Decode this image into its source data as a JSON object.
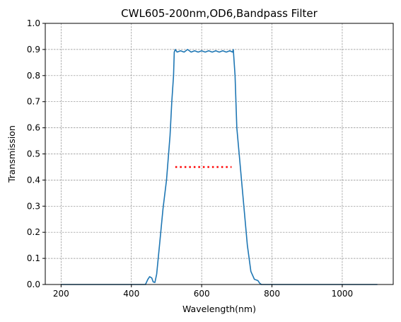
{
  "chart_data": {
    "type": "line",
    "title": "CWL605-200nm,OD6,Bandpass Filter",
    "xlabel": "Wavelength(nm)",
    "ylabel": "Transmission",
    "xlim": [
      155,
      1145
    ],
    "ylim": [
      0,
      1.0
    ],
    "x_ticks": [
      200,
      400,
      600,
      800,
      1000
    ],
    "y_ticks": [
      0.0,
      0.1,
      0.2,
      0.3,
      0.4,
      0.5,
      0.6,
      0.7,
      0.8,
      0.9,
      1.0
    ],
    "grid": true,
    "series": [
      {
        "color": "#1f77b4",
        "style": "solid",
        "x": [
          200,
          400,
          440,
          447,
          452,
          458,
          462,
          467,
          472,
          480,
          490,
          500,
          510,
          515,
          520,
          522,
          525,
          530,
          540,
          550,
          560,
          570,
          580,
          590,
          600,
          610,
          620,
          630,
          640,
          650,
          660,
          670,
          680,
          688,
          690,
          695,
          700,
          710,
          720,
          730,
          740,
          750,
          760,
          765,
          770,
          800,
          1000,
          1100
        ],
        "y": [
          0.0,
          0.0,
          0.0,
          0.02,
          0.03,
          0.025,
          0.01,
          0.008,
          0.04,
          0.15,
          0.29,
          0.4,
          0.57,
          0.7,
          0.8,
          0.89,
          0.9,
          0.89,
          0.895,
          0.89,
          0.9,
          0.89,
          0.895,
          0.89,
          0.895,
          0.89,
          0.895,
          0.89,
          0.895,
          0.89,
          0.895,
          0.89,
          0.895,
          0.89,
          0.9,
          0.8,
          0.6,
          0.45,
          0.3,
          0.15,
          0.05,
          0.02,
          0.015,
          0.005,
          0.0,
          0.0,
          0.0,
          0.0
        ]
      },
      {
        "color": "#ff0000",
        "style": "dotted",
        "x": [
          525,
          685
        ],
        "y": [
          0.45,
          0.45
        ]
      }
    ]
  }
}
